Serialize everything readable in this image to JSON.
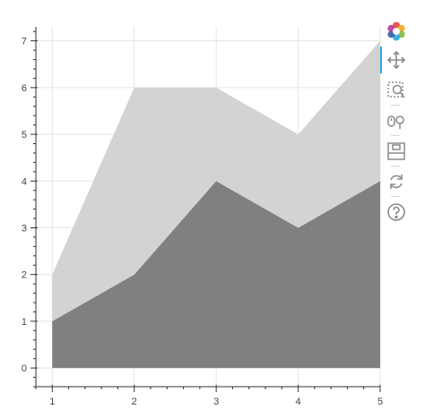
{
  "chart_data": {
    "type": "area",
    "stacked": true,
    "x": [
      1,
      2,
      3,
      4,
      5
    ],
    "series": [
      {
        "values": [
          1,
          2,
          4,
          3,
          4
        ],
        "color": "#808080"
      },
      {
        "values": [
          1,
          4,
          2,
          2,
          3
        ],
        "color": "#d3d3d3"
      }
    ],
    "xlim": [
      0.8,
      5.0
    ],
    "ylim": [
      -0.4,
      7.3
    ],
    "x_ticks": [
      1,
      2,
      3,
      4,
      5
    ],
    "y_ticks": [
      0,
      1,
      2,
      3,
      4,
      5,
      6,
      7
    ],
    "grid": true,
    "title": "",
    "xlabel": "",
    "ylabel": ""
  },
  "toolbar": {
    "logo": "bokeh-logo-icon",
    "tools": [
      {
        "icon": "pan-icon",
        "active": true
      },
      {
        "icon": "box-zoom-icon",
        "active": false
      },
      {
        "icon": "wheel-zoom-icon",
        "active": false
      },
      {
        "icon": "save-icon",
        "active": false
      },
      {
        "icon": "reset-icon",
        "active": false
      },
      {
        "icon": "help-icon",
        "active": false
      }
    ]
  }
}
